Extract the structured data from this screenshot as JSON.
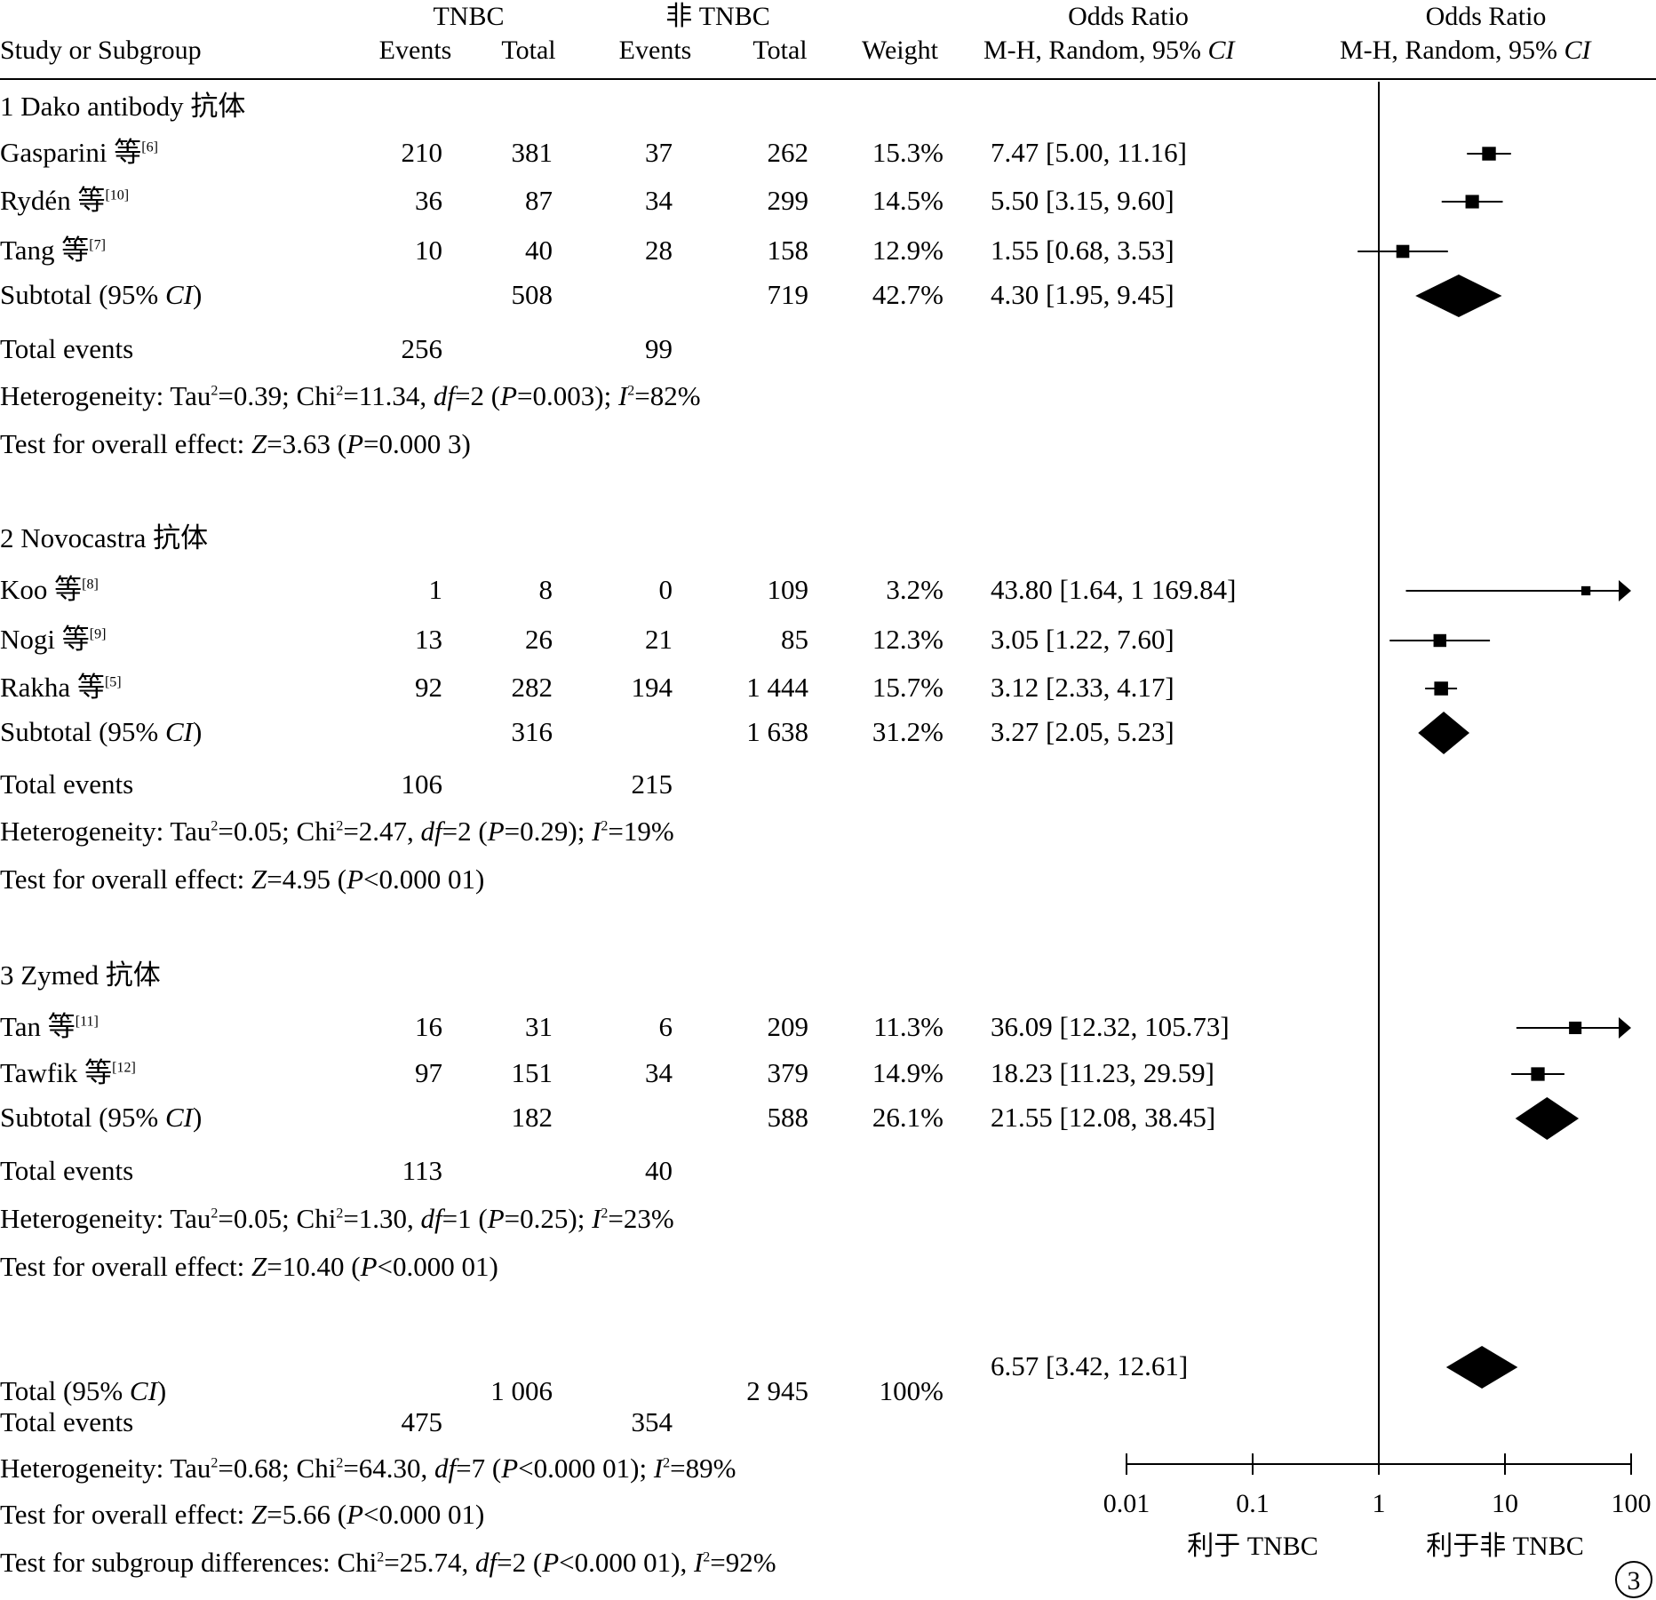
{
  "header": {
    "group1": "TNBC",
    "group2": "非 TNBC",
    "study_col": "Study or Subgroup",
    "events": "Events",
    "total": "Total",
    "weight": "Weight",
    "or_title": "Odds Ratio",
    "or_method": "M-H, Random, 95%",
    "ci": "CI"
  },
  "rows": [
    {
      "kind": "subgroup",
      "label": "1  Dako antibody 抗体"
    },
    {
      "kind": "study",
      "name": "Gasparini 等",
      "ref": "[6]",
      "e1": "210",
      "t1": "381",
      "e2": "37",
      "t2": "262",
      "weight": "15.3%",
      "or_text": "7.47 [5.00, 11.16]"
    },
    {
      "kind": "study",
      "name": "Rydén 等",
      "ref": "[10]",
      "e1": "36",
      "t1": "87",
      "e2": "34",
      "t2": "299",
      "weight": "14.5%",
      "or_text": "5.50 [3.15, 9.60]"
    },
    {
      "kind": "study",
      "name": "Tang 等",
      "ref": "[7]",
      "e1": "10",
      "t1": "40",
      "e2": "28",
      "t2": "158",
      "weight": "12.9%",
      "or_text": "1.55 [0.68, 3.53]"
    },
    {
      "kind": "subtotal",
      "label": "Subtotal (95% ",
      "ci": "CI",
      "close": ")",
      "t1": "508",
      "t2": "719",
      "weight": "42.7%",
      "or_text": "4.30 [1.95, 9.45]"
    },
    {
      "kind": "events",
      "label": "Total events",
      "e1": "256",
      "e2": "99"
    },
    {
      "kind": "het",
      "text": "Heterogeneity: Tau²=0.39; Chi²=11.34, df=2 (P=0.003); I²=82%"
    },
    {
      "kind": "test",
      "text": "Test for overall effect: Z=3.63 (P=0.000 3)"
    },
    {
      "kind": "subgroup",
      "label": "2  Novocastra 抗体"
    },
    {
      "kind": "study",
      "name": "Koo 等",
      "ref": "[8]",
      "e1": "1",
      "t1": "8",
      "e2": "0",
      "t2": "109",
      "weight": "3.2%",
      "or_text": "43.80 [1.64, 1 169.84]"
    },
    {
      "kind": "study",
      "name": "Nogi 等",
      "ref": "[9]",
      "e1": "13",
      "t1": "26",
      "e2": "21",
      "t2": "85",
      "weight": "12.3%",
      "or_text": "3.05 [1.22, 7.60]"
    },
    {
      "kind": "study",
      "name": "Rakha 等",
      "ref": "[5]",
      "e1": "92",
      "t1": "282",
      "e2": "194",
      "t2": "1 444",
      "weight": "15.7%",
      "or_text": "3.12 [2.33, 4.17]"
    },
    {
      "kind": "subtotal",
      "label": "Subtotal (95% ",
      "ci": "CI",
      "close": ")",
      "t1": "316",
      "t2": "1 638",
      "weight": "31.2%",
      "or_text": "3.27 [2.05, 5.23]"
    },
    {
      "kind": "events",
      "label": "Total events",
      "e1": "106",
      "e2": "215"
    },
    {
      "kind": "het",
      "text": "Heterogeneity: Tau²=0.05; Chi²=2.47, df=2 (P=0.29); I²=19%"
    },
    {
      "kind": "test",
      "text": "Test for overall effect: Z=4.95 (P<0.000 01)"
    },
    {
      "kind": "subgroup",
      "label": "3  Zymed  抗体"
    },
    {
      "kind": "study",
      "name": "Tan 等",
      "ref": "[11]",
      "e1": "16",
      "t1": "31",
      "e2": "6",
      "t2": "209",
      "weight": "11.3%",
      "or_text": "36.09 [12.32, 105.73]"
    },
    {
      "kind": "study",
      "name": "Tawfik 等",
      "ref": "[12]",
      "e1": "97",
      "t1": "151",
      "e2": "34",
      "t2": "379",
      "weight": "14.9%",
      "or_text": "18.23 [11.23, 29.59]"
    },
    {
      "kind": "subtotal",
      "label": "Subtotal (95% ",
      "ci": "CI",
      "close": ")",
      "t1": "182",
      "t2": "588",
      "weight": "26.1%",
      "or_text": "21.55 [12.08, 38.45]"
    },
    {
      "kind": "events",
      "label": "Total events",
      "e1": "113",
      "e2": "40"
    },
    {
      "kind": "het",
      "text": "Heterogeneity: Tau²=0.05; Chi²=1.30, df=1 (P=0.25); I²=23%"
    },
    {
      "kind": "test",
      "text": "Test for overall effect: Z=10.40 (P<0.000 01)"
    },
    {
      "kind": "total",
      "label": "Total (95% ",
      "ci": "CI",
      "close": ")",
      "t1": "1 006",
      "t2": "2 945",
      "weight": "100%",
      "or_text": "6.57 [3.42, 12.61]"
    },
    {
      "kind": "events",
      "label": "Total events",
      "e1": "475",
      "e2": "354"
    },
    {
      "kind": "het",
      "text": "Heterogeneity: Tau²=0.68; Chi²=64.30, df=7 (P<0.000 01); I²=89%"
    },
    {
      "kind": "test",
      "text": "Test for overall effect: Z=5.66 (P<0.000 01)"
    },
    {
      "kind": "test",
      "text": "Test for subgroup differences: Chi²=25.74, df=2 (P<0.000 01), I²=92%"
    }
  ],
  "chart_data": {
    "type": "forest",
    "x_scale": "log",
    "xlim": [
      0.01,
      100
    ],
    "x_ticks": [
      "0.01",
      "0.1",
      "1",
      "10",
      "100"
    ],
    "reference_line": 1,
    "xlabel_left": "利于 TNBC",
    "xlabel_right": "利于非 TNBC",
    "studies": [
      {
        "name": "Gasparini 等",
        "or": 7.47,
        "lo": 5.0,
        "hi": 11.16,
        "weight": 15.3
      },
      {
        "name": "Rydén 等",
        "or": 5.5,
        "lo": 3.15,
        "hi": 9.6,
        "weight": 14.5
      },
      {
        "name": "Tang 等",
        "or": 1.55,
        "lo": 0.68,
        "hi": 3.53,
        "weight": 12.9
      },
      {
        "name": "Koo 等",
        "or": 43.8,
        "lo": 1.64,
        "hi": 1169.84,
        "weight": 3.2
      },
      {
        "name": "Nogi 等",
        "or": 3.05,
        "lo": 1.22,
        "hi": 7.6,
        "weight": 12.3
      },
      {
        "name": "Rakha 等",
        "or": 3.12,
        "lo": 2.33,
        "hi": 4.17,
        "weight": 15.7
      },
      {
        "name": "Tan 等",
        "or": 36.09,
        "lo": 12.32,
        "hi": 105.73,
        "weight": 11.3
      },
      {
        "name": "Tawfik 等",
        "or": 18.23,
        "lo": 11.23,
        "hi": 29.59,
        "weight": 14.9
      }
    ],
    "summaries": [
      {
        "name": "Subtotal 1",
        "or": 4.3,
        "lo": 1.95,
        "hi": 9.45
      },
      {
        "name": "Subtotal 2",
        "or": 3.27,
        "lo": 2.05,
        "hi": 5.23
      },
      {
        "name": "Subtotal 3",
        "or": 21.55,
        "lo": 12.08,
        "hi": 38.45
      },
      {
        "name": "Total",
        "or": 6.57,
        "lo": 3.42,
        "hi": 12.61
      }
    ]
  },
  "figure_badge": "3"
}
